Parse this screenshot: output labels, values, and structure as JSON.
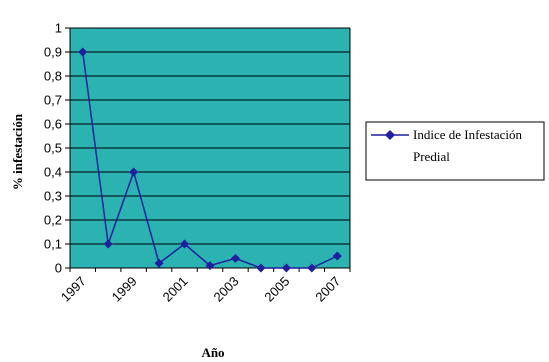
{
  "chart_data": {
    "type": "line",
    "title": "",
    "xlabel": "Año",
    "ylabel": "% infestación",
    "ylim": [
      0,
      1
    ],
    "yticks": [
      "0",
      "0,1",
      "0,2",
      "0,3",
      "0,4",
      "0,5",
      "0,6",
      "0,7",
      "0,8",
      "0,9",
      "1"
    ],
    "xticks": [
      "1997",
      "1999",
      "2001",
      "2003",
      "2005",
      "2007"
    ],
    "x": [
      1997,
      1998,
      1999,
      2000,
      2001,
      2002,
      2003,
      2004,
      2005,
      2006,
      2007
    ],
    "grid": "horizontal",
    "legend_position": "right",
    "series": [
      {
        "name": "Indice de Infestación Predial",
        "values": [
          0.9,
          0.1,
          0.4,
          0.02,
          0.1,
          0.01,
          0.04,
          0.0,
          0.0,
          0.0,
          0.05
        ],
        "color": "#1f1fa0",
        "marker": "diamond"
      }
    ],
    "colors": {
      "plot_background": "#2ab3b0",
      "gridline": "#000000",
      "series": "#1f1fa0"
    }
  }
}
